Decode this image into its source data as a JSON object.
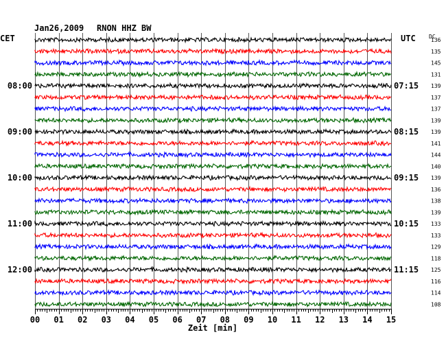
{
  "chart_data": {
    "type": "line",
    "title": "Jan26,2009",
    "station": "RNON HHZ BW",
    "left_timezone": "CET",
    "right_timezone": "UTC",
    "dc_header": "DC",
    "xlabel": "Zeit [min]",
    "xlim": [
      0,
      15
    ],
    "x_ticks": [
      "00",
      "01",
      "02",
      "03",
      "04",
      "05",
      "06",
      "07",
      "08",
      "09",
      "10",
      "11",
      "12",
      "13",
      "14",
      "15"
    ],
    "trace_count": 24,
    "trace_colors": [
      "#000000",
      "#ff0000",
      "#0000ff",
      "#006600"
    ],
    "left_time_labels": [
      {
        "trace": 4,
        "text": "08:00"
      },
      {
        "trace": 8,
        "text": "09:00"
      },
      {
        "trace": 12,
        "text": "10:00"
      },
      {
        "trace": 16,
        "text": "11:00"
      },
      {
        "trace": 20,
        "text": "12:00"
      }
    ],
    "right_time_labels": [
      {
        "trace": 4,
        "text": "07:15"
      },
      {
        "trace": 8,
        "text": "08:15"
      },
      {
        "trace": 12,
        "text": "09:15"
      },
      {
        "trace": 16,
        "text": "10:15"
      },
      {
        "trace": 20,
        "text": "11:15"
      }
    ],
    "dc_offsets": [
      "136",
      "135",
      "145",
      "131",
      "139",
      "137",
      "137",
      "139",
      "139",
      "141",
      "144",
      "140",
      "139",
      "136",
      "138",
      "139",
      "133",
      "133",
      "129",
      "118",
      "125",
      "116",
      "114",
      "108"
    ]
  }
}
